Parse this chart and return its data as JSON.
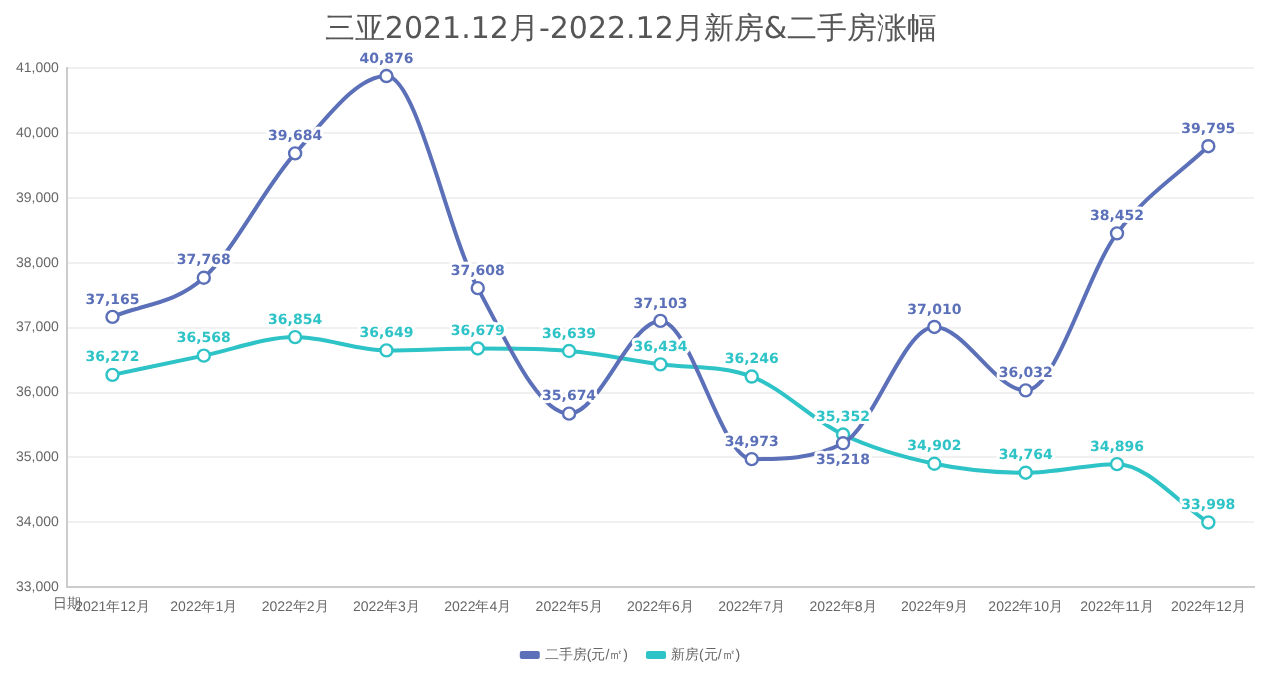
{
  "chart_data": {
    "type": "line",
    "title": "三亚2021.12月-2022.12月新房&二手房涨幅",
    "xlabel": "日期",
    "categories": [
      "2021年12月",
      "2022年1月",
      "2022年2月",
      "2022年3月",
      "2022年4月",
      "2022年5月",
      "2022年6月",
      "2022年7月",
      "2022年8月",
      "2022年9月",
      "2022年10月",
      "2022年11月",
      "2022年12月"
    ],
    "series": [
      {
        "name": "二手房(元/㎡)",
        "color": "#5b70b8",
        "values": [
          37165,
          37768,
          39684,
          40876,
          37608,
          35674,
          37103,
          34973,
          35218,
          37010,
          36032,
          38452,
          39795
        ],
        "value_labels": [
          "37,165",
          "37,768",
          "39,684",
          "40,876",
          "37,608",
          "35,674",
          "37,103",
          "34,973",
          "35,218",
          "37,010",
          "36,032",
          "38,452",
          "39,795"
        ]
      },
      {
        "name": "新房(元/㎡)",
        "color": "#2ec3c6",
        "values": [
          36272,
          36568,
          36854,
          36649,
          36679,
          36639,
          36434,
          36246,
          35352,
          34902,
          34764,
          34896,
          33998
        ],
        "value_labels": [
          "36,272",
          "36,568",
          "36,854",
          "36,649",
          "36,679",
          "36,639",
          "36,434",
          "36,246",
          "35,352",
          "34,902",
          "34,764",
          "34,896",
          "33,998"
        ]
      }
    ],
    "ylim": [
      33000,
      41000
    ],
    "yticks": [
      {
        "value": 33000,
        "label": "33,000"
      },
      {
        "value": 34000,
        "label": "34,000"
      },
      {
        "value": 35000,
        "label": "35,000"
      },
      {
        "value": 36000,
        "label": "36,000"
      },
      {
        "value": 37000,
        "label": "37,000"
      },
      {
        "value": 38000,
        "label": "38,000"
      },
      {
        "value": 39000,
        "label": "39,000"
      },
      {
        "value": 40000,
        "label": "40,000"
      },
      {
        "value": 41000,
        "label": "41,000"
      }
    ],
    "grid": "y",
    "legend": "bottom",
    "marker": "circle",
    "line_style": "solid"
  }
}
